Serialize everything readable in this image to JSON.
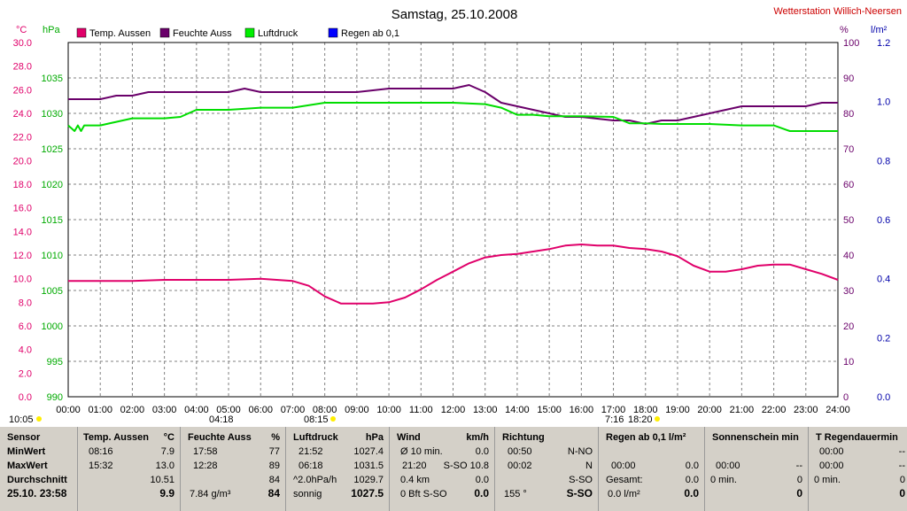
{
  "header": {
    "title": "Samstag, 25.10.2008",
    "station": "Wetterstation Willich-Neersen"
  },
  "colors": {
    "temp": "#e0006a",
    "humidity": "#6a006a",
    "pressure": "#00dd00",
    "rain": "#0000ff",
    "grid": "#808080",
    "table_bg": "#d4d0c8"
  },
  "chart_data": {
    "type": "line",
    "axes": {
      "temp_label": "°C",
      "temp_range": [
        0,
        30
      ],
      "temp_ticks": [
        "0.0",
        "2.0",
        "4.0",
        "6.0",
        "8.0",
        "10.0",
        "12.0",
        "14.0",
        "16.0",
        "18.0",
        "20.0",
        "22.0",
        "24.0",
        "26.0",
        "28.0",
        "30.0"
      ],
      "pressure_label": "hPa",
      "pressure_range": [
        990,
        1040
      ],
      "pressure_ticks": [
        "990",
        "995",
        "1000",
        "1005",
        "1010",
        "1015",
        "1020",
        "1025",
        "1030",
        "1035"
      ],
      "humidity_label": "%",
      "humidity_range": [
        0,
        100
      ],
      "humidity_ticks": [
        "0",
        "10",
        "20",
        "30",
        "40",
        "50",
        "60",
        "70",
        "80",
        "90",
        "100"
      ],
      "rain_label": "l/m²",
      "rain_range": [
        0,
        1.2
      ],
      "rain_ticks": [
        "0.0",
        "0.2",
        "0.4",
        "0.6",
        "0.8",
        "1.0",
        "1.2"
      ],
      "x_range": [
        0,
        24
      ],
      "x_ticks": [
        "00:00",
        "01:00",
        "02:00",
        "03:00",
        "04:00",
        "05:00",
        "06:00",
        "07:00",
        "08:00",
        "09:00",
        "10:00",
        "11:00",
        "12:00",
        "13:00",
        "14:00",
        "15:00",
        "16:00",
        "17:00",
        "18:00",
        "19:00",
        "20:00",
        "21:00",
        "22:00",
        "23:00",
        "24:00"
      ],
      "grid": true
    },
    "legend": [
      "Temp. Aussen",
      "Feuchte Auss",
      "Luftdruck",
      "Regen ab 0,1"
    ],
    "sun_labels": [
      "10:05",
      "04:18",
      "08:15",
      "7:16",
      "18:20"
    ],
    "series": [
      {
        "name": "Temp. Aussen",
        "axis": "temp",
        "x": [
          0,
          1,
          2,
          3,
          4,
          5,
          6,
          7,
          7.5,
          8,
          8.5,
          9,
          9.5,
          10,
          10.5,
          11,
          11.5,
          12,
          12.5,
          13,
          13.5,
          14,
          14.5,
          15,
          15.5,
          16,
          16.5,
          17,
          17.5,
          18,
          18.5,
          19,
          19.5,
          20,
          20.5,
          21,
          21.5,
          22,
          22.5,
          23,
          23.5,
          24
        ],
        "y": [
          9.8,
          9.8,
          9.8,
          9.9,
          9.9,
          9.9,
          10.0,
          9.8,
          9.4,
          8.5,
          7.9,
          7.9,
          7.9,
          8.0,
          8.4,
          9.1,
          9.9,
          10.6,
          11.3,
          11.8,
          12.0,
          12.1,
          12.3,
          12.5,
          12.8,
          12.9,
          12.8,
          12.8,
          12.6,
          12.5,
          12.3,
          11.9,
          11.1,
          10.6,
          10.6,
          10.8,
          11.1,
          11.2,
          11.2,
          10.8,
          10.4,
          9.9
        ]
      },
      {
        "name": "Feuchte Auss",
        "axis": "humidity",
        "x": [
          0,
          0.5,
          1,
          1.5,
          2,
          2.5,
          3,
          4,
          5,
          5.5,
          6,
          7,
          8,
          9,
          10,
          11,
          12,
          12.5,
          13,
          13.5,
          14,
          14.5,
          15,
          15.5,
          16,
          17,
          17.5,
          18,
          18.5,
          19,
          19.5,
          20,
          20.5,
          21,
          22,
          23,
          23.5,
          24
        ],
        "y": [
          84,
          84,
          84,
          85,
          85,
          86,
          86,
          86,
          86,
          87,
          86,
          86,
          86,
          86,
          87,
          87,
          87,
          88,
          86,
          83,
          82,
          81,
          80,
          79,
          79,
          78,
          78,
          77,
          78,
          78,
          79,
          80,
          81,
          82,
          82,
          82,
          83,
          83
        ]
      },
      {
        "name": "Luftdruck",
        "axis": "pressure",
        "x": [
          0,
          0.2,
          0.3,
          0.4,
          0.5,
          1,
          2,
          2.5,
          3,
          3.5,
          4,
          5,
          6,
          7,
          8,
          9,
          10,
          11,
          12,
          13,
          13.5,
          14,
          14.5,
          15,
          16,
          17,
          17.5,
          18,
          18.5,
          19,
          20,
          21,
          22,
          22.5,
          23,
          23.5,
          24
        ],
        "y": [
          1028.3,
          1027.5,
          1028.3,
          1027.5,
          1028.3,
          1028.3,
          1029.3,
          1029.3,
          1029.3,
          1029.5,
          1030.5,
          1030.5,
          1030.8,
          1030.8,
          1031.5,
          1031.5,
          1031.5,
          1031.5,
          1031.5,
          1031.3,
          1030.8,
          1029.8,
          1029.8,
          1029.6,
          1029.6,
          1029.5,
          1028.6,
          1028.6,
          1028.5,
          1028.5,
          1028.5,
          1028.3,
          1028.3,
          1027.5,
          1027.5,
          1027.5,
          1027.5
        ]
      }
    ]
  },
  "table": {
    "col_sensor": {
      "header": "Sensor",
      "min": "MinWert",
      "max": "MaxWert",
      "avg": "Durchschnitt",
      "date": "25.10. 23:58"
    },
    "col_temp": {
      "header": "Temp. Aussen",
      "unit": "°C",
      "min_time": "08:16",
      "min_val": "7.9",
      "max_time": "15:32",
      "max_val": "13.0",
      "avg": "10.51",
      "current": "9.9"
    },
    "col_hum": {
      "header": "Feuchte Auss",
      "unit": "%",
      "min_time": "17:58",
      "min_val": "77",
      "max_time": "12:28",
      "max_val": "89",
      "avg": "84",
      "abs": "7.84 g/m³",
      "current": "84"
    },
    "col_press": {
      "header": "Luftdruck",
      "unit": "hPa",
      "min_time": "21:52",
      "min_val": "1027.4",
      "max_time": "06:18",
      "max_val": "1031.5",
      "trend_label": "^2.0hPa/h",
      "trend_val": "1029.7",
      "forecast": "sonnig",
      "current": "1027.5"
    },
    "col_wind": {
      "header": "Wind",
      "unit": "km/h",
      "r1_label": "Ø 10 min.",
      "r1_val": "0.0",
      "r2_time": "21:20",
      "r2_val": "S-SO 10.8",
      "r3_label": "0.4 km",
      "r3_val": "0.0",
      "r4_label": "0 Bft S-SO",
      "current": "0.0"
    },
    "col_dir": {
      "header": "Richtung",
      "r1_time": "00:50",
      "r1_val": "N-NO",
      "r2_time": "00:02",
      "r2_val": "N",
      "r3_val": "S-SO",
      "deg": "155 °",
      "current": "S-SO"
    },
    "col_rain": {
      "header": "Regen ab 0,1 l/m²",
      "r2_time": "00:00",
      "r2_val": "0.0",
      "r3_label": "Gesamt:",
      "r3_val": "0.0",
      "r4_label": "0.0 l/m²",
      "current": "0.0"
    },
    "col_sun": {
      "header": "Sonnenschein min",
      "r2_time": "00:00",
      "r2_val": "--",
      "r3_label": "0 min.",
      "r3_val": "0",
      "current": "0"
    },
    "col_rainlen": {
      "header": "T Regendauermin",
      "r1_time": "00:00",
      "r1_val": "--",
      "r2_time": "00:00",
      "r2_val": "--",
      "r3_label": "0 min.",
      "r3_val": "0",
      "current": "0"
    }
  }
}
